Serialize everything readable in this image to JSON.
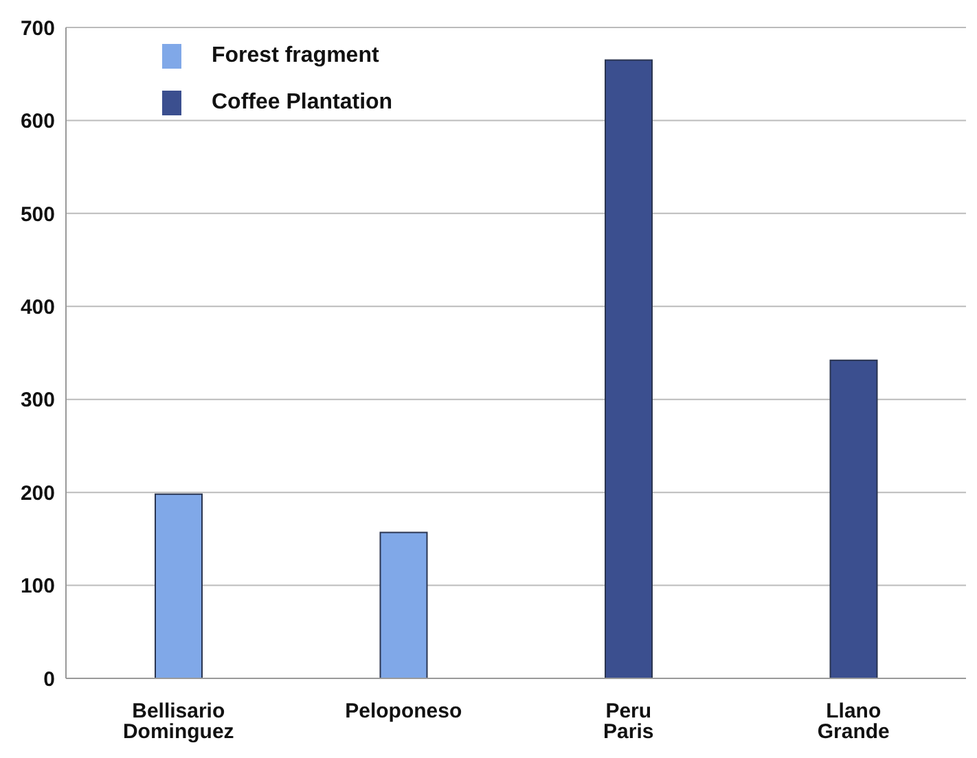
{
  "chart_data": {
    "type": "bar",
    "categories": [
      "Bellisario Dominguez",
      "Peloponeso",
      "Peru Paris",
      "Llano Grande"
    ],
    "series": [
      {
        "name": "Forest fragment",
        "color": "#80a8e8",
        "values": [
          198,
          157,
          null,
          null
        ]
      },
      {
        "name": "Coffee Plantation",
        "color": "#3b4f8f",
        "values": [
          null,
          null,
          665,
          342
        ]
      }
    ],
    "ylim": [
      0,
      700
    ],
    "yticks": [
      0,
      100,
      200,
      300,
      400,
      500,
      600,
      700
    ],
    "grid": "y",
    "legend": "top left"
  }
}
